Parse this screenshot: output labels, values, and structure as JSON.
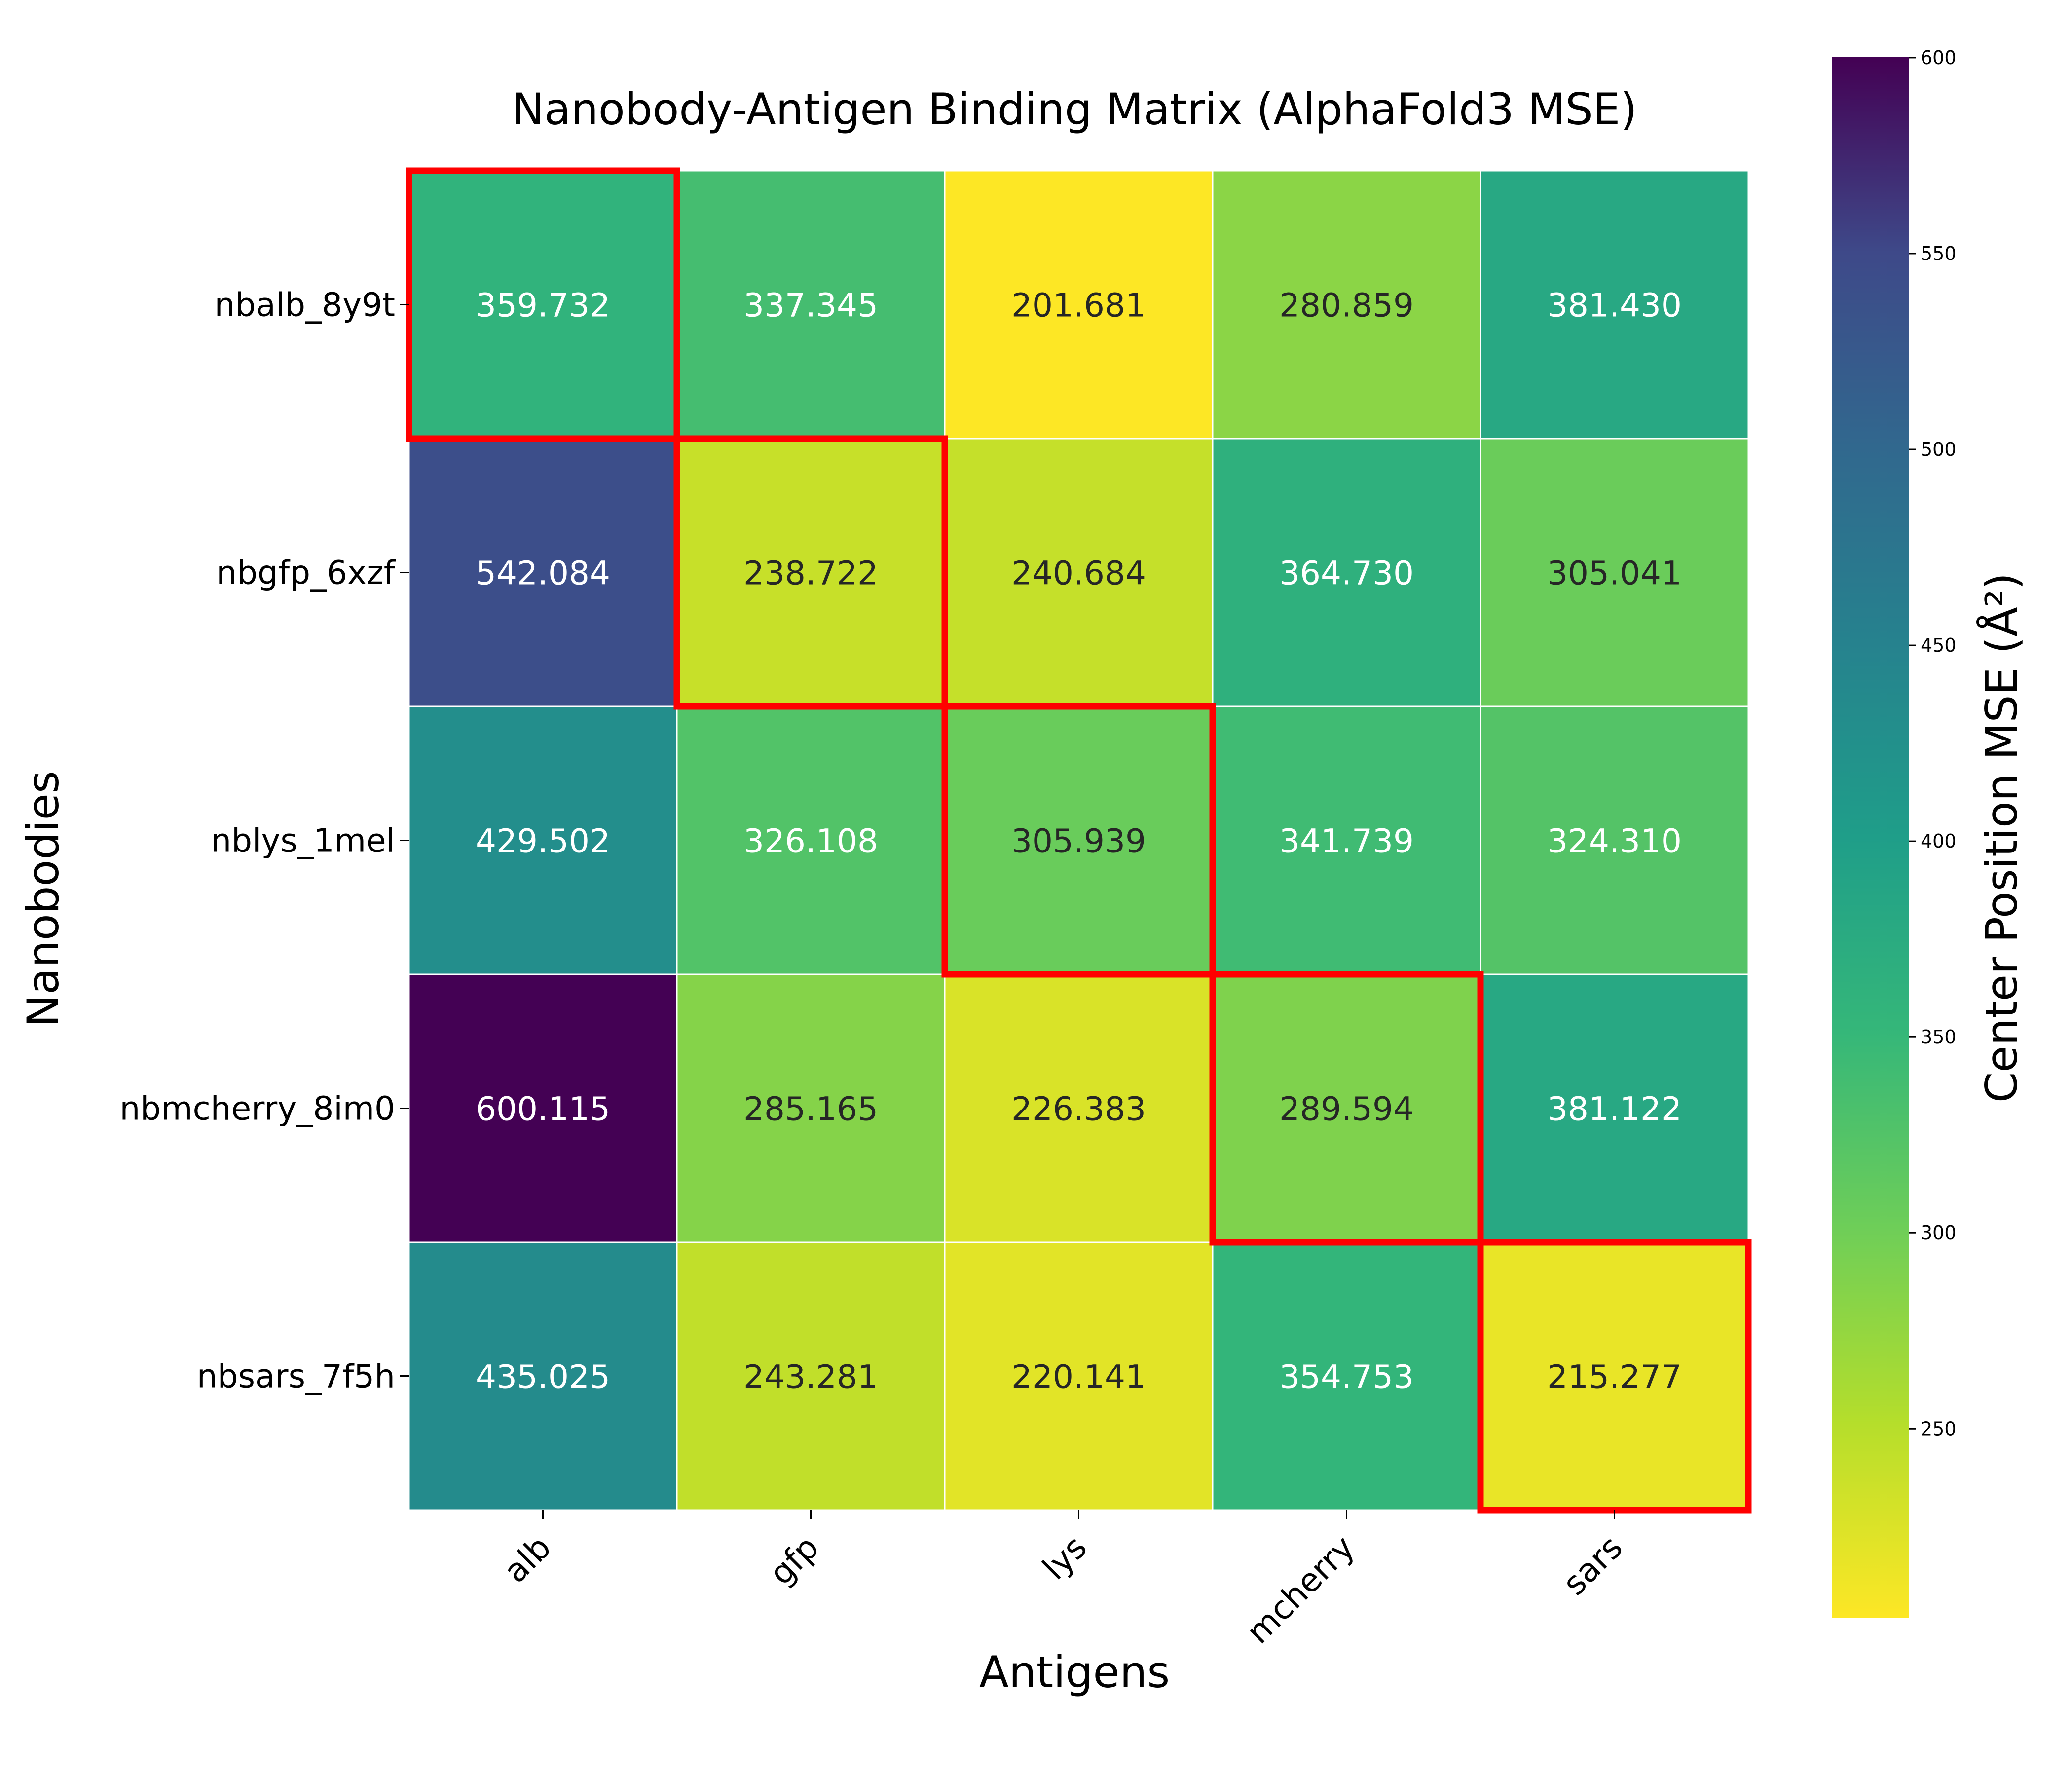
{
  "chart_data": {
    "type": "heatmap",
    "title": "Nanobody-Antigen Binding Matrix (AlphaFold3 MSE)",
    "xlabel": "Antigens",
    "ylabel": "Nanobodies",
    "x_categories": [
      "alb",
      "gfp",
      "lys",
      "mcherry",
      "sars"
    ],
    "y_categories": [
      "nbalb_8y9t",
      "nbgfp_6xzf",
      "nblys_1mel",
      "nbmcherry_8im0",
      "nbsars_7f5h"
    ],
    "values": [
      [
        359.732,
        337.345,
        201.681,
        280.859,
        381.43
      ],
      [
        542.084,
        238.722,
        240.684,
        364.73,
        305.041
      ],
      [
        429.502,
        326.108,
        305.939,
        341.739,
        324.31
      ],
      [
        600.115,
        285.165,
        226.383,
        289.594,
        381.122
      ],
      [
        435.025,
        243.281,
        220.141,
        354.753,
        215.277
      ]
    ],
    "value_labels": [
      [
        "359.732",
        "337.345",
        "201.681",
        "280.859",
        "381.430"
      ],
      [
        "542.084",
        "238.722",
        "240.684",
        "364.730",
        "305.041"
      ],
      [
        "429.502",
        "326.108",
        "305.939",
        "341.739",
        "324.310"
      ],
      [
        "600.115",
        "285.165",
        "226.383",
        "289.594",
        "381.122"
      ],
      [
        "435.025",
        "243.281",
        "220.141",
        "354.753",
        "215.277"
      ]
    ],
    "highlighted_cells": [
      [
        0,
        0
      ],
      [
        1,
        1
      ],
      [
        2,
        2
      ],
      [
        3,
        3
      ],
      [
        4,
        4
      ]
    ],
    "highlight_color": "#ff0000",
    "colormap": "viridis_r",
    "colorbar": {
      "label": "Center Position MSE (Å²)",
      "range": [
        201.681,
        600.115
      ],
      "ticks": [
        250,
        300,
        350,
        400,
        450,
        500,
        550,
        600
      ],
      "tick_labels": [
        "250",
        "300",
        "350",
        "400",
        "450",
        "500",
        "550",
        "600"
      ]
    },
    "grid": false,
    "cell_separator_color": "#ffffff"
  }
}
